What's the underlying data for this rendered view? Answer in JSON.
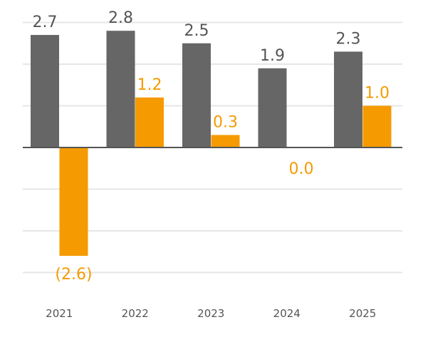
{
  "chart_data": {
    "type": "bar",
    "categories": [
      "2021",
      "2022",
      "2023",
      "2024",
      "2025"
    ],
    "series": [
      {
        "values": [
          2.7,
          2.8,
          2.5,
          1.9,
          2.3
        ],
        "labels": [
          "2.7",
          "2.8",
          "2.5",
          "1.9",
          "2.3"
        ],
        "color": "#666666"
      },
      {
        "values": [
          -2.6,
          1.2,
          0.3,
          0.0,
          1.0
        ],
        "labels": [
          "(2.6)",
          "1.2",
          "0.3",
          "0.0",
          "1.0"
        ],
        "color": "#f59a00"
      }
    ],
    "title": "",
    "xlabel": "",
    "ylabel": "",
    "ylim": [
      -3,
      3
    ],
    "grid": true,
    "legend": "none"
  }
}
